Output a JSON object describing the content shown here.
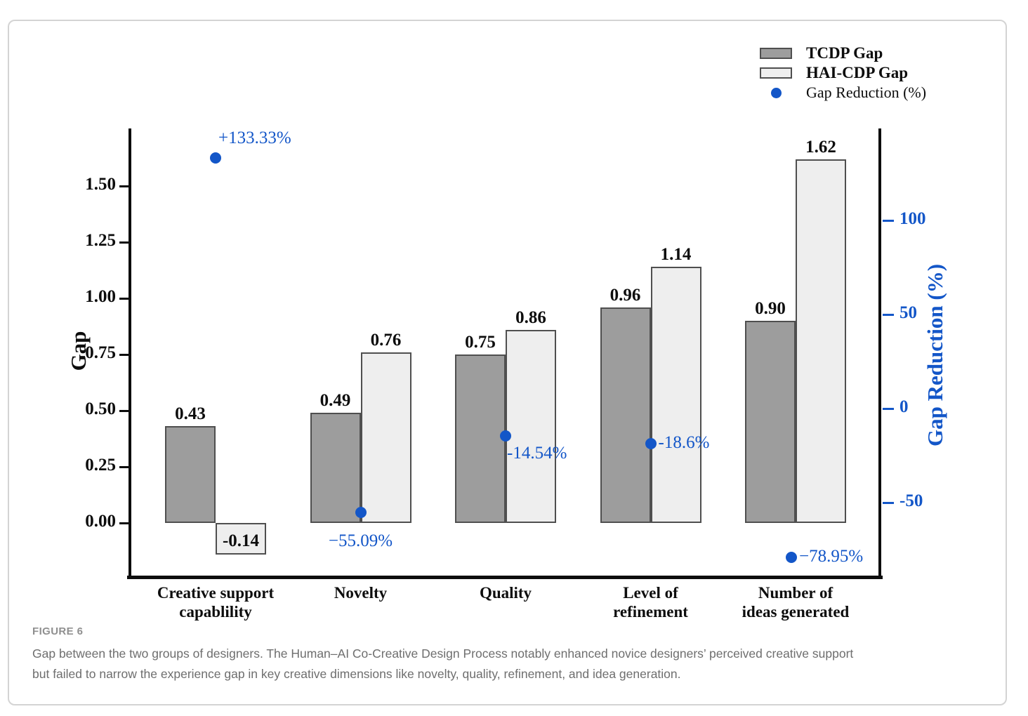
{
  "figure": {
    "label": "FIGURE 6",
    "caption_line1": "Gap between the two groups of designers. The Human–AI Co-Creative Design Process notably enhanced novice designers’ perceived creative support",
    "caption_line2": "but failed to narrow the experience gap in key creative dimensions like novelty, quality, refinement, and idea generation."
  },
  "chart_data": {
    "type": "bar",
    "categories": [
      "Creative support\ncapablility",
      "Novelty",
      "Quality",
      "Level of\nrefinement",
      "Number of\nideas generated"
    ],
    "series": [
      {
        "name": "TCDP Gap",
        "color": "#9d9d9d",
        "values": [
          0.43,
          0.49,
          0.75,
          0.96,
          0.9
        ],
        "labels": [
          "0.43",
          "0.49",
          "0.75",
          "0.96",
          "0.90"
        ]
      },
      {
        "name": "HAI-CDP Gap",
        "color": "#eeeeee",
        "values": [
          -0.14,
          0.76,
          0.86,
          1.14,
          1.62
        ],
        "labels": [
          "-0.14",
          "0.76",
          "0.86",
          "1.14",
          "1.62"
        ]
      }
    ],
    "points": {
      "name": "Gap Reduction (%)",
      "color": "#1356c8",
      "values": [
        133.33,
        -55.09,
        -14.54,
        -18.6,
        -78.95
      ],
      "labels": [
        "+133.33%",
        "−55.09%",
        "-14.54%",
        "-18.6%",
        "−78.95%"
      ],
      "label_side": [
        "above",
        "below",
        "below-right",
        "right",
        "right"
      ]
    },
    "left_axis": {
      "title": "Gap",
      "ticks": [
        "0.00",
        "0.25",
        "0.50",
        "0.75",
        "1.00",
        "1.25",
        "1.50"
      ],
      "tick_values": [
        0,
        0.25,
        0.5,
        0.75,
        1.0,
        1.25,
        1.5
      ],
      "range": [
        -0.24,
        1.76
      ]
    },
    "right_axis": {
      "title": "Gap Reduction (%)",
      "ticks": [
        "-50",
        "0",
        "50",
        "100"
      ],
      "tick_values": [
        -50,
        0,
        50,
        100
      ],
      "range": [
        -89,
        149
      ]
    },
    "legend": [
      {
        "label": "TCDP Gap",
        "swatch": "#9d9d9d"
      },
      {
        "label": "HAI-CDP Gap",
        "swatch": "#eeeeee"
      },
      {
        "label": "Gap Reduction (%)",
        "marker": "dot",
        "color": "#1356c8"
      }
    ],
    "layout": {
      "grid": false,
      "legend_position": "top-right",
      "bar_value_labels": true
    }
  }
}
